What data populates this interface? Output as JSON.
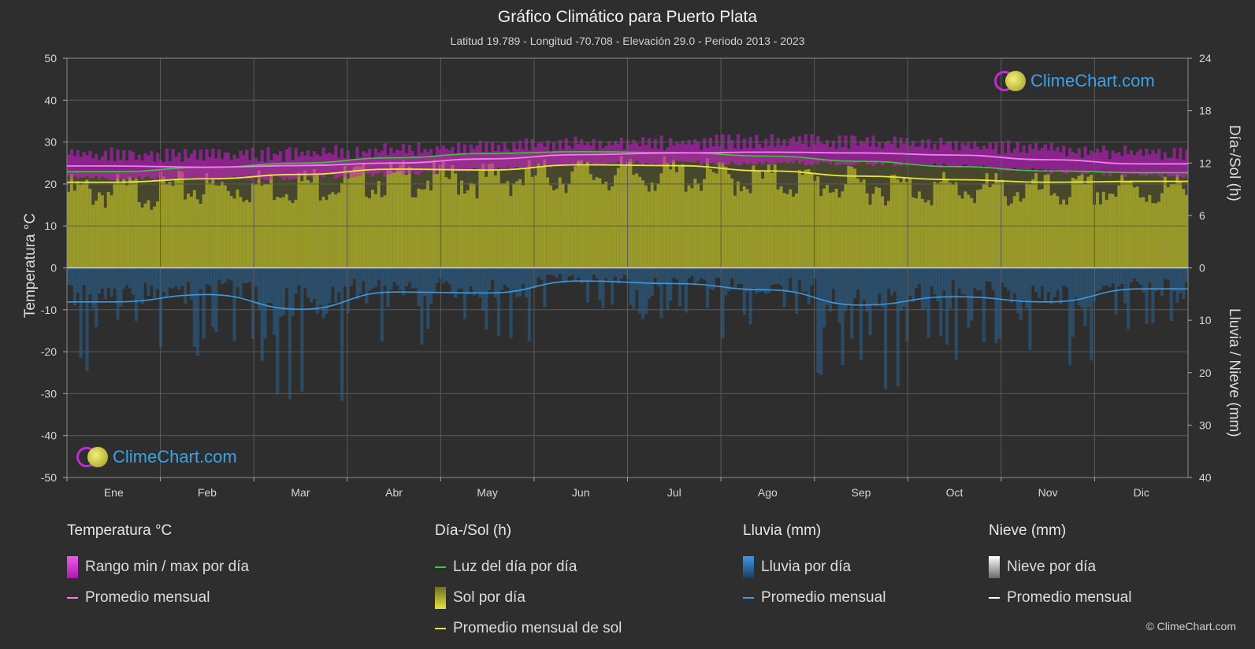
{
  "title": "Gráfico Climático para Puerto Plata",
  "subtitle": "Latitud 19.789 - Longitud -70.708 - Elevación 29.0 - Periodo 2013 - 2023",
  "logo_text": "ClimeChart.com",
  "copyright": "© ClimeChart.com",
  "legend": {
    "temperature": {
      "header": "Temperatura °C",
      "range": "Rango min / max por día",
      "mean": "Promedio mensual"
    },
    "daysun": {
      "header": "Día-/Sol (h)",
      "daylight": "Luz del día por día",
      "sun": "Sol por día",
      "sun_mean": "Promedio mensual de sol"
    },
    "rain": {
      "header": "Lluvia (mm)",
      "rain": "Lluvia por día",
      "mean": "Promedio mensual"
    },
    "snow": {
      "header": "Nieve (mm)",
      "snow": "Nieve por día",
      "mean": "Promedio mensual"
    }
  },
  "colors": {
    "background": "#2e2e2e",
    "temp_range": "#d21ed2",
    "temp_mean": "#f07ef0",
    "daylight": "#3cc83c",
    "sun_fill": "#a8a82a",
    "sun_mean": "#e6e63c",
    "rain_bar": "#2b6fa8",
    "rain_mean": "#3a9ae6",
    "snow_mean": "#ffffff"
  },
  "chart_data": {
    "type": "line",
    "categories": [
      "Ene",
      "Feb",
      "Mar",
      "Abr",
      "May",
      "Jun",
      "Jul",
      "Ago",
      "Sep",
      "Oct",
      "Nov",
      "Dic"
    ],
    "ylabel_left": "Temperatura °C",
    "ylabel_right_top": "Día-/Sol (h)",
    "ylabel_right_bottom": "Lluvia / Nieve (mm)",
    "ylim_left": [
      -50,
      50
    ],
    "yticks_left": [
      50,
      40,
      30,
      20,
      10,
      0,
      -10,
      -20,
      -30,
      -40,
      -50
    ],
    "yticks_right_hours": [
      24,
      18,
      12,
      6,
      0
    ],
    "yticks_right_mm": [
      0,
      10,
      20,
      30,
      40
    ],
    "grid": true,
    "series": [
      {
        "name": "Promedio mensual",
        "axis": "temperature_c",
        "values": [
          24.3,
          24.0,
          24.4,
          25.0,
          26.0,
          27.0,
          27.4,
          27.6,
          27.4,
          26.9,
          25.8,
          24.8
        ]
      },
      {
        "name": "Rango min / max por día",
        "axis": "temperature_c",
        "min": [
          22.0,
          21.8,
          22.2,
          23.0,
          24.2,
          25.3,
          25.6,
          25.7,
          25.5,
          24.8,
          23.6,
          22.6
        ],
        "max": [
          27.0,
          26.8,
          27.2,
          28.0,
          28.8,
          29.6,
          29.9,
          30.2,
          30.0,
          29.4,
          28.2,
          27.4
        ]
      },
      {
        "name": "Luz del día por día",
        "axis": "hours",
        "values": [
          11.0,
          11.5,
          12.0,
          12.6,
          13.1,
          13.3,
          13.2,
          12.8,
          12.2,
          11.6,
          11.1,
          10.9
        ]
      },
      {
        "name": "Promedio mensual de sol",
        "axis": "hours",
        "values": [
          9.8,
          10.2,
          10.7,
          11.3,
          11.2,
          11.8,
          11.7,
          11.1,
          10.5,
          10.1,
          9.8,
          9.9
        ]
      },
      {
        "name": "Promedio mensual",
        "axis": "rain_mm",
        "values": [
          6.5,
          5.1,
          7.9,
          4.6,
          4.8,
          2.5,
          3.0,
          4.2,
          7.1,
          5.5,
          6.5,
          4.0
        ]
      },
      {
        "name": "Promedio mensual",
        "axis": "snow_mm",
        "values": [
          0,
          0,
          0,
          0,
          0,
          0,
          0,
          0,
          0,
          0,
          0,
          0
        ]
      }
    ]
  }
}
